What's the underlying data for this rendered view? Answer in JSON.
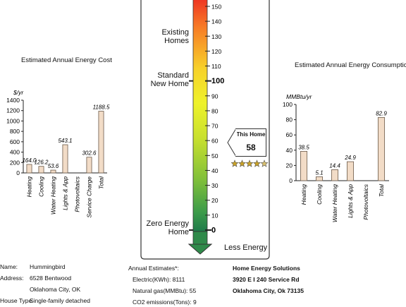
{
  "chart_data": [
    {
      "type": "bar",
      "title": "Estimated Annual Energy Cost",
      "ylabel": "$/yr",
      "categories": [
        "Heating",
        "Cooling",
        "Water Heating",
        "Lights & App",
        "Photovoltaics",
        "Service Charge",
        "Total"
      ],
      "values": [
        164.0,
        126.2,
        53.6,
        543.1,
        0,
        302.6,
        1188.5
      ],
      "data_labels": [
        "164.0",
        "126.2",
        "53.6",
        "543.1",
        "",
        "302.6",
        "1188.5"
      ],
      "ylim": [
        0,
        1400
      ],
      "yticks": [
        "0",
        "200",
        "400",
        "600",
        "800",
        "1000",
        "1200",
        "1400"
      ],
      "bar_color": "#f2dcc7"
    },
    {
      "type": "bar",
      "title": "Estimated Annual Energy Consumption",
      "ylabel": "MMBtu/yr",
      "categories": [
        "Heating",
        "Cooling",
        "Water Heating",
        "Lights & App",
        "Photovoltaics",
        "Total"
      ],
      "values": [
        38.5,
        5.1,
        14.4,
        24.9,
        0,
        82.9
      ],
      "data_labels": [
        "38.5",
        "5.1",
        "14.4",
        "24.9",
        "",
        "82.9"
      ],
      "ylim": [
        0,
        100
      ],
      "yticks": [
        "0",
        "20",
        "40",
        "60",
        "80",
        "100"
      ],
      "bar_color": "#f2dcc7"
    }
  ],
  "hers": {
    "ticks": [
      "150",
      "140",
      "130",
      "120",
      "110",
      "100",
      "90",
      "80",
      "70",
      "60",
      "50",
      "40",
      "30",
      "20",
      "10",
      "0"
    ],
    "labels": {
      "existing": "Existing\nHomes",
      "standard": "Standard\nNew Home",
      "zero": "Zero Energy\nHome",
      "less": "Less Energy"
    },
    "this_home_label": "This Home",
    "this_home_value": "58",
    "this_home_score": 58,
    "stars_filled": 4.5,
    "stars_total": 5
  },
  "info": {
    "name_label": "Name:",
    "name": "Hummingbird",
    "address_label": "Address:",
    "address1": "6528 Bentwood",
    "address2": "Oklahoma City, OK",
    "house_type_label": "House Type",
    "house_type": "Single-family detached"
  },
  "estimates": {
    "title": "Annual Estimates*:",
    "electric": "Electric(KWh):  8111",
    "gas": "Natural gas(MMBtu):  55",
    "co2": "CO2 emissions(Tons): 9"
  },
  "rater": {
    "company": "Home Energy Solutions",
    "street": "3920 E I 240 Service Rd",
    "city": "Oklahoma City, Ok 73135"
  }
}
